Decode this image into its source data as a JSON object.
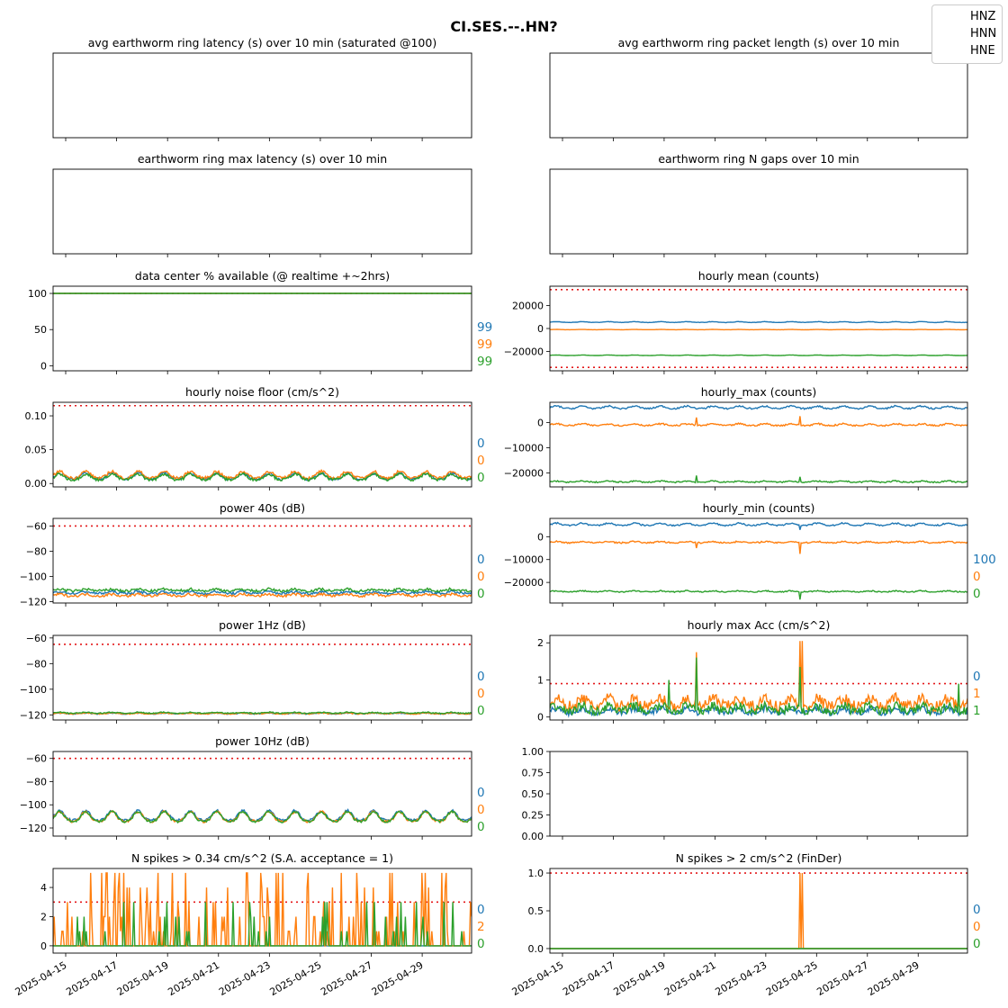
{
  "title": "CI.SES.--.HN?",
  "legend": [
    "HNZ",
    "HNN",
    "HNE"
  ],
  "colors": {
    "HNZ": "#1f77b4",
    "HNN": "#ff7f0e",
    "HNE": "#2ca02c",
    "threshold": "#e41a1c"
  },
  "x_ticks": [
    "2025-04-15",
    "2025-04-17",
    "2025-04-19",
    "2025-04-21",
    "2025-04-23",
    "2025-04-25",
    "2025-04-27",
    "2025-04-29"
  ],
  "chart_data": [
    {
      "id": "latency",
      "type": "line",
      "title": "avg earthworm ring latency (s)   over 10 min (saturated @100)",
      "y_ticks": [],
      "series": [],
      "side_values": []
    },
    {
      "id": "packet",
      "type": "line",
      "title": "avg earthworm ring packet length (s)   over 10 min",
      "y_ticks": [],
      "series": [],
      "side_values": []
    },
    {
      "id": "maxlat",
      "type": "line",
      "title": "earthworm ring max latency (s)   over 10 min",
      "y_ticks": [],
      "series": [],
      "side_values": []
    },
    {
      "id": "ngaps",
      "type": "line",
      "title": "earthworm ring N gaps   over 10 min",
      "y_ticks": [],
      "series": [],
      "side_values": []
    },
    {
      "id": "avail",
      "type": "line",
      "title": "data center % available (@ realtime +~2hrs)",
      "ylim": [
        -7,
        110
      ],
      "y_ticks": [
        "0",
        "50",
        "100"
      ],
      "y_tick_values": [
        0,
        50,
        100
      ],
      "threshold": 100,
      "gen": {
        "HNZ": {
          "base": 100,
          "amp": 0,
          "noise": 0
        },
        "HNN": {
          "base": 100,
          "amp": 0,
          "noise": 0
        },
        "HNE": {
          "base": 100,
          "amp": 0,
          "noise": 0
        }
      },
      "side_values": [
        "99",
        "99",
        "99"
      ]
    },
    {
      "id": "mean",
      "type": "line",
      "title": "hourly mean (counts)",
      "ylim": [
        -37000,
        37000
      ],
      "y_ticks": [
        "−20000",
        "0",
        "20000"
      ],
      "y_tick_values": [
        -20000,
        0,
        20000
      ],
      "threshold": [
        34000,
        -34000
      ],
      "gen": {
        "HNZ": {
          "base": 5500,
          "amp": 500,
          "noise": 150
        },
        "HNN": {
          "base": -1000,
          "amp": 150,
          "noise": 50
        },
        "HNE": {
          "base": -23500,
          "amp": 300,
          "noise": 100
        }
      },
      "side_values": []
    },
    {
      "id": "noise",
      "type": "line",
      "title": "hourly noise floor (cm/s^2)",
      "ylim": [
        -0.005,
        0.12
      ],
      "y_ticks": [
        "0.00",
        "0.05",
        "0.10"
      ],
      "y_tick_values": [
        0,
        0.05,
        0.1
      ],
      "threshold": 0.115,
      "gen": {
        "HNZ": {
          "base": 0.009,
          "amp": 0.006,
          "noise": 0.002
        },
        "HNN": {
          "base": 0.011,
          "amp": 0.007,
          "noise": 0.002
        },
        "HNE": {
          "base": 0.008,
          "amp": 0.006,
          "noise": 0.002
        }
      },
      "side_values": [
        "0",
        "0",
        "0"
      ]
    },
    {
      "id": "hmax",
      "type": "line",
      "title": "hourly_max (counts)",
      "ylim": [
        -25500,
        8000
      ],
      "y_ticks": [
        "−20000",
        "−10000",
        "0"
      ],
      "y_tick_values": [
        -20000,
        -10000,
        0
      ],
      "gen": {
        "HNZ": {
          "base": 5800,
          "amp": 700,
          "noise": 300
        },
        "HNN": {
          "base": -1000,
          "amp": 500,
          "noise": 300
        },
        "HNE": {
          "base": -23500,
          "amp": 300,
          "noise": 250
        }
      },
      "spikes": [
        {
          "s": "HNN",
          "t": 0.35,
          "v": 2000
        },
        {
          "s": "HNN",
          "t": 0.6,
          "v": 2500
        },
        {
          "s": "HNE",
          "t": 0.35,
          "v": -21000
        },
        {
          "s": "HNE",
          "t": 0.6,
          "v": -21500
        }
      ],
      "side_values": []
    },
    {
      "id": "p40",
      "type": "line",
      "title": "power 40s (dB)",
      "ylim": [
        -121,
        -54
      ],
      "y_ticks": [
        "−120",
        "−100",
        "−80",
        "−60"
      ],
      "y_tick_values": [
        -120,
        -100,
        -80,
        -60
      ],
      "threshold": -60,
      "gen": {
        "HNZ": {
          "base": -113,
          "amp": 1,
          "noise": 1
        },
        "HNN": {
          "base": -115,
          "amp": 1,
          "noise": 1
        },
        "HNE": {
          "base": -111,
          "amp": 1,
          "noise": 1
        }
      },
      "side_values": [
        "0",
        "0",
        "0"
      ]
    },
    {
      "id": "hmin",
      "type": "line",
      "title": "hourly_min (counts)",
      "ylim": [
        -29000,
        8000
      ],
      "y_ticks": [
        "−20000",
        "−10000",
        "0"
      ],
      "y_tick_values": [
        -20000,
        -10000,
        0
      ],
      "gen": {
        "HNZ": {
          "base": 5200,
          "amp": 700,
          "noise": 300
        },
        "HNN": {
          "base": -2500,
          "amp": 400,
          "noise": 300
        },
        "HNE": {
          "base": -24000,
          "amp": 300,
          "noise": 250
        }
      },
      "spikes": [
        {
          "s": "HNN",
          "t": 0.6,
          "v": -7500
        },
        {
          "s": "HNE",
          "t": 0.6,
          "v": -27500
        },
        {
          "s": "HNZ",
          "t": 0.6,
          "v": 3000
        },
        {
          "s": "HNN",
          "t": 0.35,
          "v": -5000
        }
      ],
      "side_values": [
        "100",
        "0",
        "0"
      ]
    },
    {
      "id": "p1hz",
      "type": "line",
      "title": "power 1Hz (dB)",
      "ylim": [
        -124,
        -58
      ],
      "y_ticks": [
        "−120",
        "−100",
        "−80",
        "−60"
      ],
      "y_tick_values": [
        -120,
        -100,
        -80,
        -60
      ],
      "threshold": -65,
      "gen": {
        "HNZ": {
          "base": -119,
          "amp": 0.5,
          "noise": 0.4
        },
        "HNN": {
          "base": -119,
          "amp": 0.5,
          "noise": 0.4
        },
        "HNE": {
          "base": -118.5,
          "amp": 0.5,
          "noise": 0.4
        }
      },
      "side_values": [
        "0",
        "0",
        "0"
      ]
    },
    {
      "id": "maxacc",
      "type": "line",
      "title": "hourly max Acc (cm/s^2)",
      "ylim": [
        -0.08,
        2.2
      ],
      "y_ticks": [
        "0",
        "1",
        "2"
      ],
      "y_tick_values": [
        0,
        1,
        2
      ],
      "threshold": 0.9,
      "gen": {
        "HNZ": {
          "base": 0.15,
          "amp": 0.08,
          "noise": 0.08
        },
        "HNN": {
          "base": 0.35,
          "amp": 0.15,
          "noise": 0.15
        },
        "HNE": {
          "base": 0.2,
          "amp": 0.1,
          "noise": 0.12
        }
      },
      "spikes": [
        {
          "s": "HNN",
          "t": 0.35,
          "v": 1.75
        },
        {
          "s": "HNE",
          "t": 0.35,
          "v": 1.6
        },
        {
          "s": "HNN",
          "t": 0.6,
          "v": 2.05
        },
        {
          "s": "HNN",
          "t": 0.605,
          "v": 2.05
        },
        {
          "s": "HNE",
          "t": 0.6,
          "v": 1.35
        },
        {
          "s": "HNE",
          "t": 0.285,
          "v": 1.0
        },
        {
          "s": "HNE",
          "t": 0.98,
          "v": 0.9
        }
      ],
      "side_values": [
        "0",
        "1",
        "1"
      ]
    },
    {
      "id": "p10hz",
      "type": "line",
      "title": "power 10Hz (dB)",
      "ylim": [
        -127,
        -54
      ],
      "y_ticks": [
        "−120",
        "−100",
        "−80",
        "−60"
      ],
      "y_tick_values": [
        -120,
        -100,
        -80,
        -60
      ],
      "threshold": -60,
      "gen": {
        "HNZ": {
          "base": -111,
          "amp": 6,
          "noise": 1
        },
        "HNN": {
          "base": -112,
          "amp": 6,
          "noise": 1
        },
        "HNE": {
          "base": -112,
          "amp": 6,
          "noise": 1
        }
      },
      "side_values": [
        "0",
        "0",
        "0"
      ]
    },
    {
      "id": "empty",
      "type": "line",
      "title": "",
      "ylim": [
        0,
        1
      ],
      "y_ticks": [
        "0.00",
        "0.25",
        "0.50",
        "0.75",
        "1.00"
      ],
      "y_tick_values": [
        0,
        0.25,
        0.5,
        0.75,
        1
      ],
      "series": [],
      "side_values": []
    },
    {
      "id": "spikes034",
      "type": "line",
      "title": "N spikes > 0.34 cm/s^2 (S.A. acceptance = 1)",
      "ylim": [
        -0.5,
        5.3
      ],
      "y_ticks": [
        "0",
        "2",
        "4"
      ],
      "y_tick_values": [
        0,
        2,
        4
      ],
      "threshold": 3,
      "gen": {
        "HNN": {
          "base": 0,
          "spiky": 0.28,
          "max": 5
        },
        "HNE": {
          "base": 0,
          "spiky": 0.09,
          "max": 3
        },
        "HNZ": {
          "base": 0,
          "spiky": 0,
          "max": 0
        }
      },
      "side_values": [
        "0",
        "2",
        "0"
      ],
      "x_labels": true
    },
    {
      "id": "spikes2",
      "type": "line",
      "title": "N spikes > 2 cm/s^2 (FinDer)",
      "ylim": [
        -0.06,
        1.06
      ],
      "y_ticks": [
        "0.0",
        "0.5",
        "1.0"
      ],
      "y_tick_values": [
        0,
        0.5,
        1
      ],
      "threshold": 1,
      "gen": {
        "HNZ": {
          "base": 0,
          "amp": 0,
          "noise": 0
        },
        "HNE": {
          "base": 0,
          "amp": 0,
          "noise": 0
        },
        "HNN": {
          "base": 0,
          "amp": 0,
          "noise": 0
        }
      },
      "spikes": [
        {
          "s": "HNN",
          "t": 0.6,
          "v": 1
        },
        {
          "s": "HNN",
          "t": 0.605,
          "v": 1
        }
      ],
      "side_values": [
        "0",
        "0",
        "0"
      ],
      "x_labels": true
    }
  ]
}
